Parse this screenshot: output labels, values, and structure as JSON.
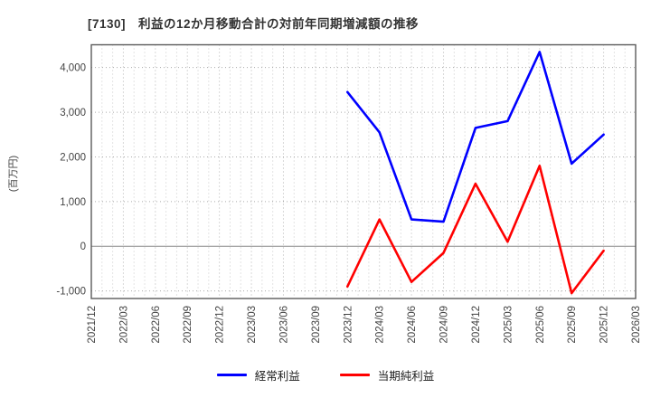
{
  "chart_data": {
    "type": "line",
    "title": "[7130]　利益の12か月移動合計の対前年同期増減額の推移",
    "ylabel": "(百万円)",
    "xlabel": "",
    "categories": [
      "2021/12",
      "2022/03",
      "2022/06",
      "2022/09",
      "2022/12",
      "2023/03",
      "2023/06",
      "2023/09",
      "2023/12",
      "2024/03",
      "2024/06",
      "2024/09",
      "2024/12",
      "2025/03",
      "2025/06",
      "2025/09",
      "2025/12",
      "2026/03"
    ],
    "series": [
      {
        "name": "経常利益",
        "color": "#0000ff",
        "values": [
          null,
          null,
          null,
          null,
          null,
          null,
          null,
          null,
          3450,
          2550,
          600,
          550,
          2650,
          2800,
          4350,
          1850,
          2500,
          null
        ]
      },
      {
        "name": "当期純利益",
        "color": "#ff0000",
        "values": [
          null,
          null,
          null,
          null,
          null,
          null,
          null,
          null,
          -900,
          600,
          -800,
          -150,
          1400,
          100,
          1800,
          -1050,
          -100,
          null
        ]
      }
    ],
    "yticks": [
      -1000,
      0,
      1000,
      2000,
      3000,
      4000
    ],
    "ylim": [
      -1170,
      4510
    ],
    "grid": true,
    "minor_x_per_tick": 3,
    "legend_position": "bottom",
    "zero_line": true
  },
  "style_colors": {
    "grid_minor": "#c9c9c9",
    "grid_major_v": "#b3b3b3",
    "grid_h": "#aaaaaa",
    "zero_line": "#888888",
    "border": "#5a5a5a",
    "tick_label": "#444444"
  }
}
